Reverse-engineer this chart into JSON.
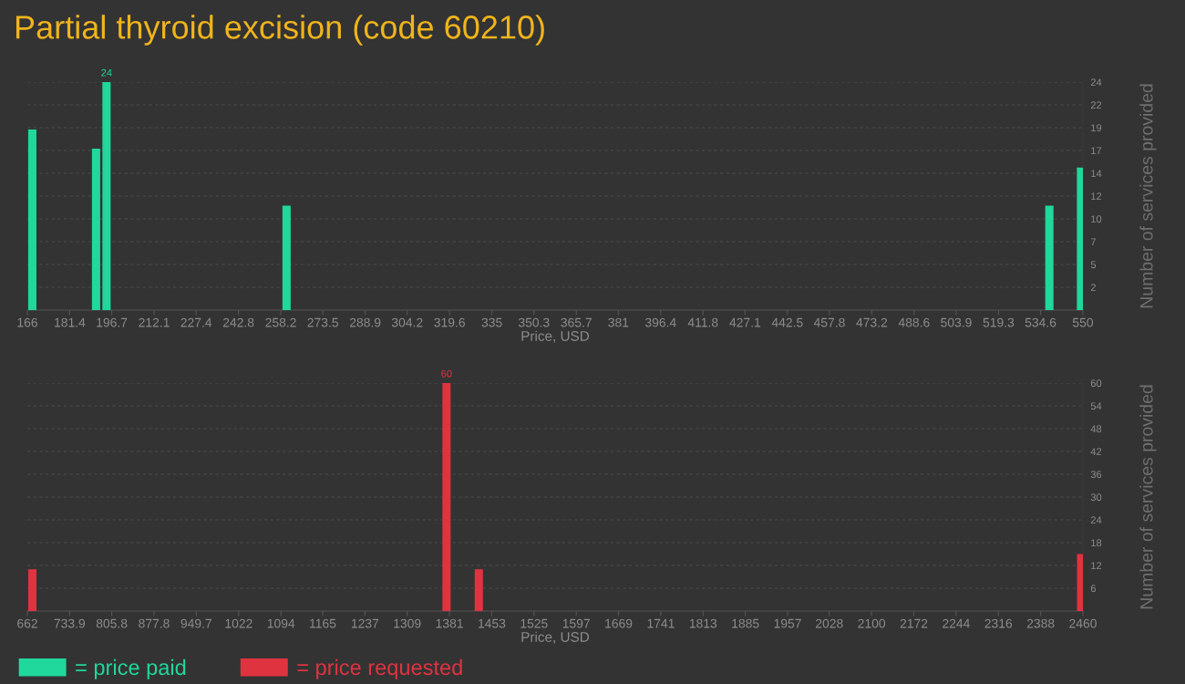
{
  "chart_data": [
    {
      "type": "bar",
      "title": "Partial thyroid excision (code 60210)",
      "xlabel": "Price, USD",
      "ylabel": "Number of services provided",
      "x": [
        167.8,
        191.0,
        194.8,
        260.3,
        537.8,
        549.3
      ],
      "series": [
        {
          "name": "= price paid",
          "color": "#20d89b",
          "values": [
            19,
            17,
            24,
            11,
            11,
            15
          ],
          "value_labels": [
            null,
            null,
            "24",
            null,
            null,
            null
          ]
        }
      ],
      "xlim": [
        166,
        550
      ],
      "xticks": [
        166,
        181.4,
        196.7,
        212.1,
        227.4,
        242.8,
        258.2,
        273.5,
        288.9,
        304.2,
        319.6,
        335,
        350.3,
        365.7,
        381,
        396.4,
        411.8,
        427.1,
        442.5,
        457.8,
        473.2,
        488.6,
        503.9,
        519.3,
        534.6,
        550
      ],
      "ylim": [
        0,
        24
      ],
      "yticks": [
        {
          "value": 2.4,
          "label": "2"
        },
        {
          "value": 4.8,
          "label": "5"
        },
        {
          "value": 7.2,
          "label": "7"
        },
        {
          "value": 9.6,
          "label": "10"
        },
        {
          "value": 12,
          "label": "12"
        },
        {
          "value": 14.4,
          "label": "14"
        },
        {
          "value": 16.8,
          "label": "17"
        },
        {
          "value": 19.2,
          "label": "19"
        },
        {
          "value": 21.6,
          "label": "22"
        },
        {
          "value": 24,
          "label": "24"
        }
      ],
      "grid": "y",
      "legend": "bottom"
    },
    {
      "type": "bar",
      "xlabel": "Price, USD",
      "ylabel": "Number of services provided",
      "x": [
        670.5,
        1376,
        1431,
        2457
      ],
      "series": [
        {
          "name": "= price requested",
          "color": "#e03340",
          "values": [
            11,
            60,
            11,
            15
          ],
          "value_labels": [
            null,
            "60",
            null,
            null
          ]
        }
      ],
      "xlim": [
        662,
        2460
      ],
      "xticks": [
        662,
        733.9,
        805.8,
        877.8,
        949.7,
        1022,
        1094,
        1165,
        1237,
        1309,
        1381,
        1453,
        1525,
        1597,
        1669,
        1741,
        1813,
        1885,
        1957,
        2028,
        2100,
        2172,
        2244,
        2316,
        2388,
        2460
      ],
      "ylim": [
        0,
        60
      ],
      "yticks": [
        6,
        12,
        18,
        24,
        30,
        36,
        42,
        48,
        54,
        60
      ],
      "grid": "y",
      "legend": "bottom"
    }
  ]
}
